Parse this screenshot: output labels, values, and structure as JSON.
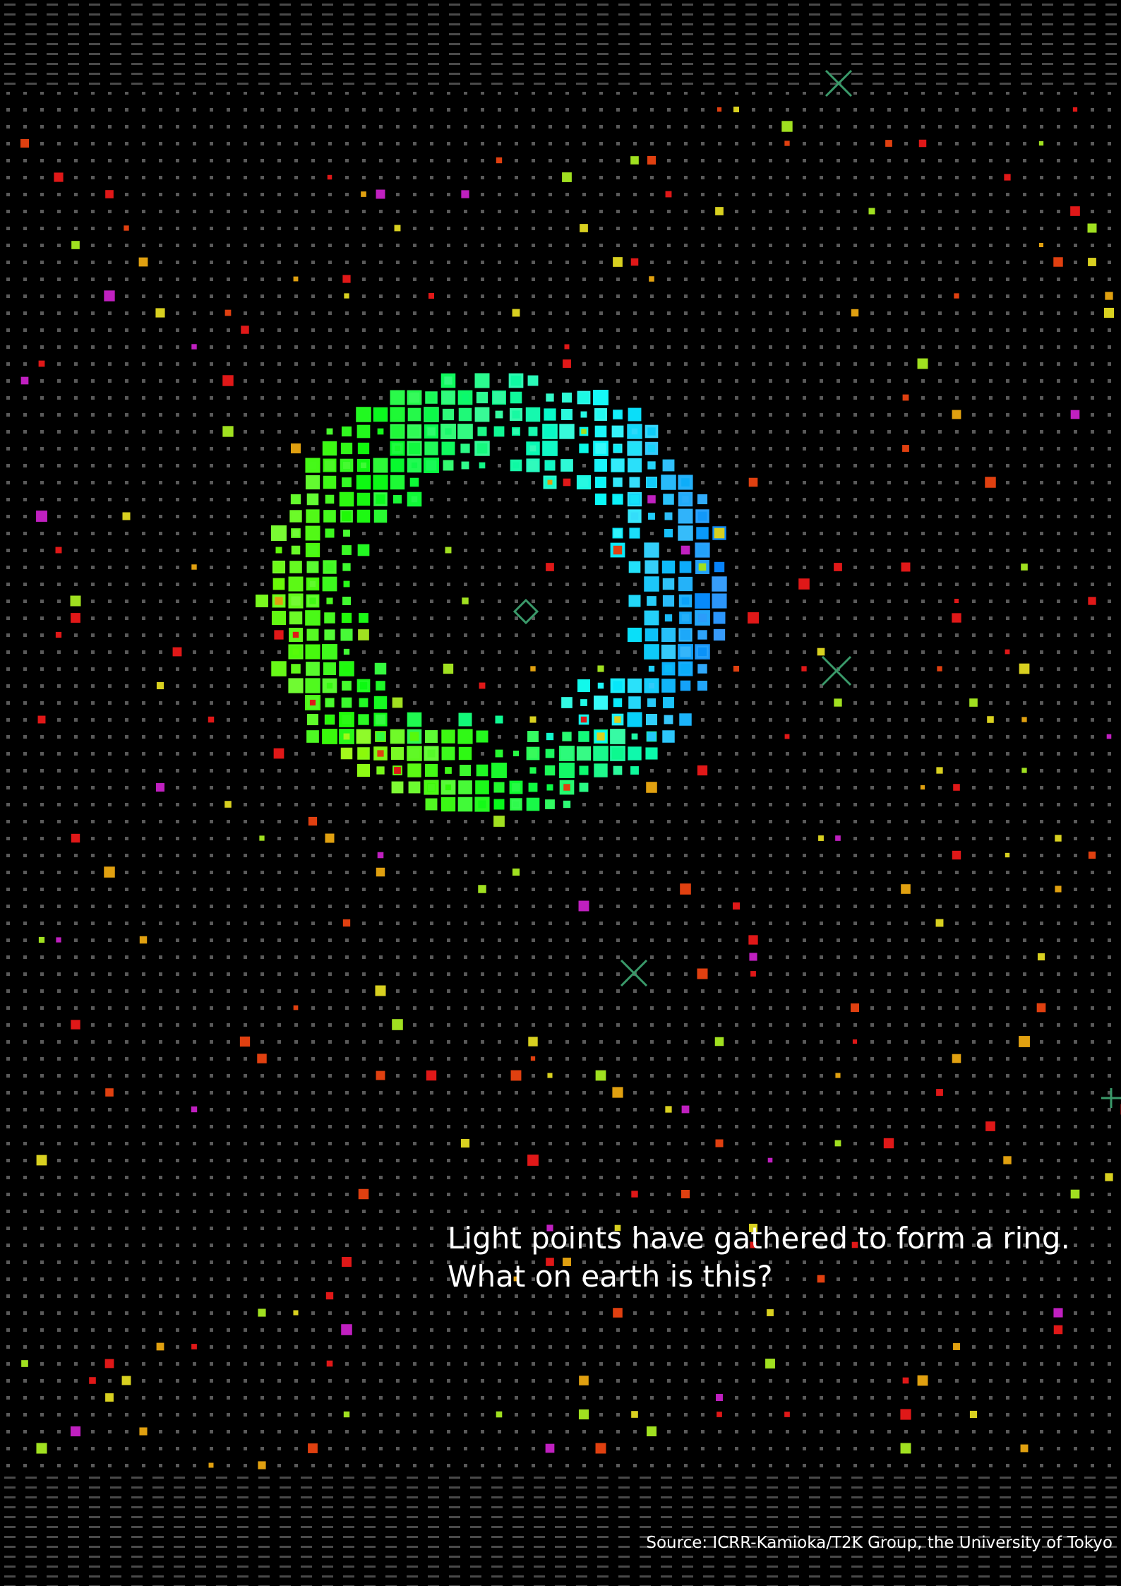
{
  "caption": {
    "lines": [
      "Light points have gathered to form a ring.",
      "What on earth is this?"
    ]
  },
  "source": "Source: ICRR-Kamioka/T2K Group, the University of Tokyo"
}
